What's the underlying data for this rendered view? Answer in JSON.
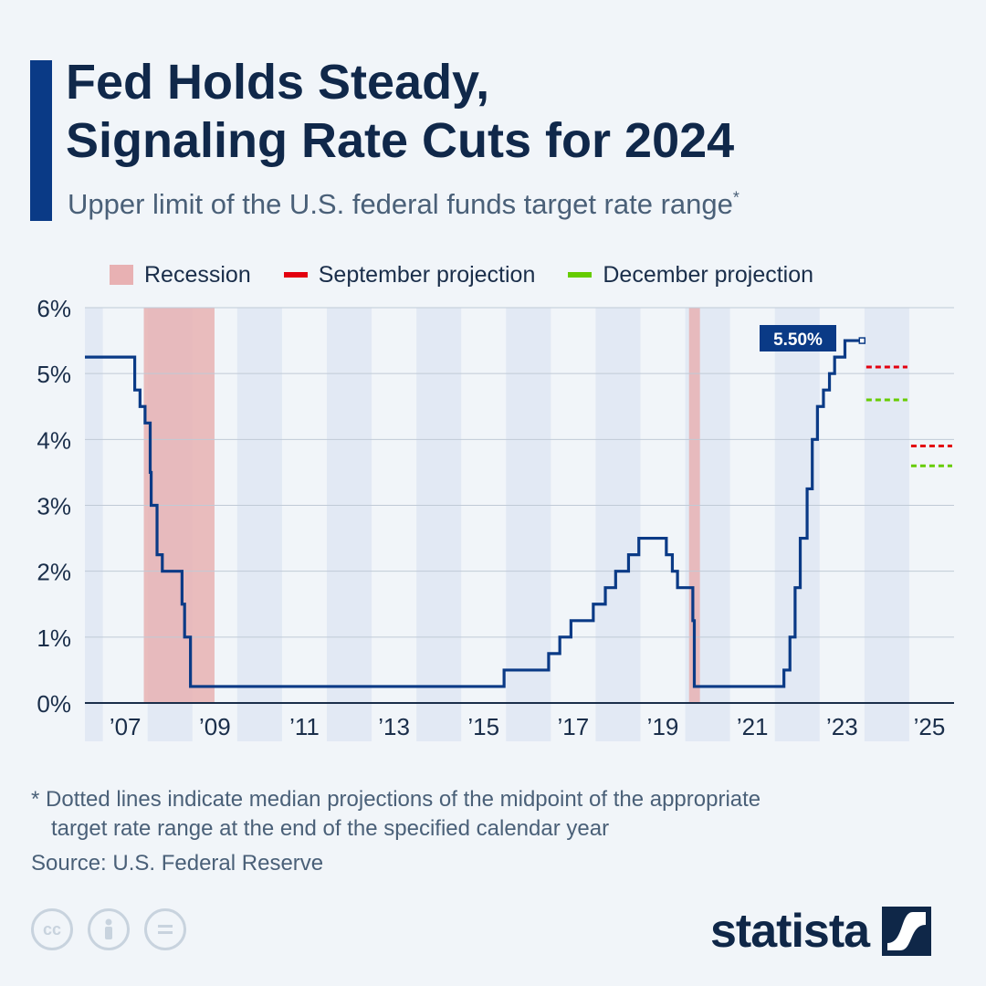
{
  "header": {
    "title_line1": "Fed Holds Steady,",
    "title_line2": "Signaling Rate Cuts for 2024",
    "subtitle": "Upper limit of the U.S. federal funds target rate range",
    "subtitle_mark": "*"
  },
  "legend": {
    "recession": "Recession",
    "september": "September projection",
    "december": "December projection"
  },
  "colors": {
    "rate_line": "#0a3a86",
    "recession": "#e8b1b3",
    "september": "#e3000f",
    "december": "#66cc00",
    "band": "#e2e9f4",
    "grid": "#c0cad6",
    "label_bg": "#0a3a86"
  },
  "chart_data": {
    "type": "line",
    "title": "Fed Holds Steady, Signaling Rate Cuts for 2024",
    "subtitle": "Upper limit of the U.S. federal funds target rate range",
    "ylabel": "",
    "xlabel": "",
    "ylim": [
      0,
      6
    ],
    "y_ticks": [
      "0%",
      "1%",
      "2%",
      "3%",
      "4%",
      "5%",
      "6%"
    ],
    "x_ticks": [
      "’07",
      "’09",
      "’11",
      "’13",
      "’15",
      "’17",
      "’19",
      "’21",
      "’23",
      "’25"
    ],
    "grid": true,
    "legend_position": "top",
    "series": [
      {
        "name": "Upper limit of target rate",
        "points": [
          [
            "2006-06-29",
            5.25
          ],
          [
            "2007-09-18",
            4.75
          ],
          [
            "2007-10-31",
            4.5
          ],
          [
            "2007-12-11",
            4.25
          ],
          [
            "2008-01-22",
            3.5
          ],
          [
            "2008-01-30",
            3.0
          ],
          [
            "2008-03-18",
            2.25
          ],
          [
            "2008-04-30",
            2.0
          ],
          [
            "2008-10-08",
            1.5
          ],
          [
            "2008-10-29",
            1.0
          ],
          [
            "2008-12-16",
            0.25
          ],
          [
            "2015-12-16",
            0.5
          ],
          [
            "2016-12-14",
            0.75
          ],
          [
            "2017-03-15",
            1.0
          ],
          [
            "2017-06-14",
            1.25
          ],
          [
            "2017-12-13",
            1.5
          ],
          [
            "2018-03-21",
            1.75
          ],
          [
            "2018-06-13",
            2.0
          ],
          [
            "2018-09-26",
            2.25
          ],
          [
            "2018-12-19",
            2.5
          ],
          [
            "2019-07-31",
            2.25
          ],
          [
            "2019-09-18",
            2.0
          ],
          [
            "2019-10-30",
            1.75
          ],
          [
            "2020-03-03",
            1.25
          ],
          [
            "2020-03-15",
            0.25
          ],
          [
            "2022-03-16",
            0.5
          ],
          [
            "2022-05-04",
            1.0
          ],
          [
            "2022-06-15",
            1.75
          ],
          [
            "2022-07-27",
            2.5
          ],
          [
            "2022-09-21",
            3.25
          ],
          [
            "2022-11-02",
            4.0
          ],
          [
            "2022-12-14",
            4.5
          ],
          [
            "2023-02-01",
            4.75
          ],
          [
            "2023-03-22",
            5.0
          ],
          [
            "2023-05-03",
            5.25
          ],
          [
            "2023-07-26",
            5.5
          ],
          [
            "2023-12-13",
            5.5
          ]
        ]
      }
    ],
    "projections": [
      {
        "name": "September projection",
        "year": "2024",
        "value": 5.1
      },
      {
        "name": "December projection",
        "year": "2024",
        "value": 4.6
      },
      {
        "name": "September projection",
        "year": "2025",
        "value": 3.9
      },
      {
        "name": "December projection",
        "year": "2025",
        "value": 3.6
      }
    ],
    "recessions": [
      {
        "start": "2007-12-01",
        "end": "2009-06-30"
      },
      {
        "start": "2020-02-01",
        "end": "2020-04-30"
      }
    ],
    "annotation": "5.50%"
  },
  "footnote": {
    "line1": "* Dotted lines indicate median projections of the midpoint of the appropriate",
    "line2": "target rate range at the end of the specified calendar year"
  },
  "source": "Source: U.S. Federal Reserve",
  "brand": "statista",
  "icons": [
    "cc-icon",
    "by-icon",
    "nd-icon",
    "statista-logo-icon"
  ]
}
